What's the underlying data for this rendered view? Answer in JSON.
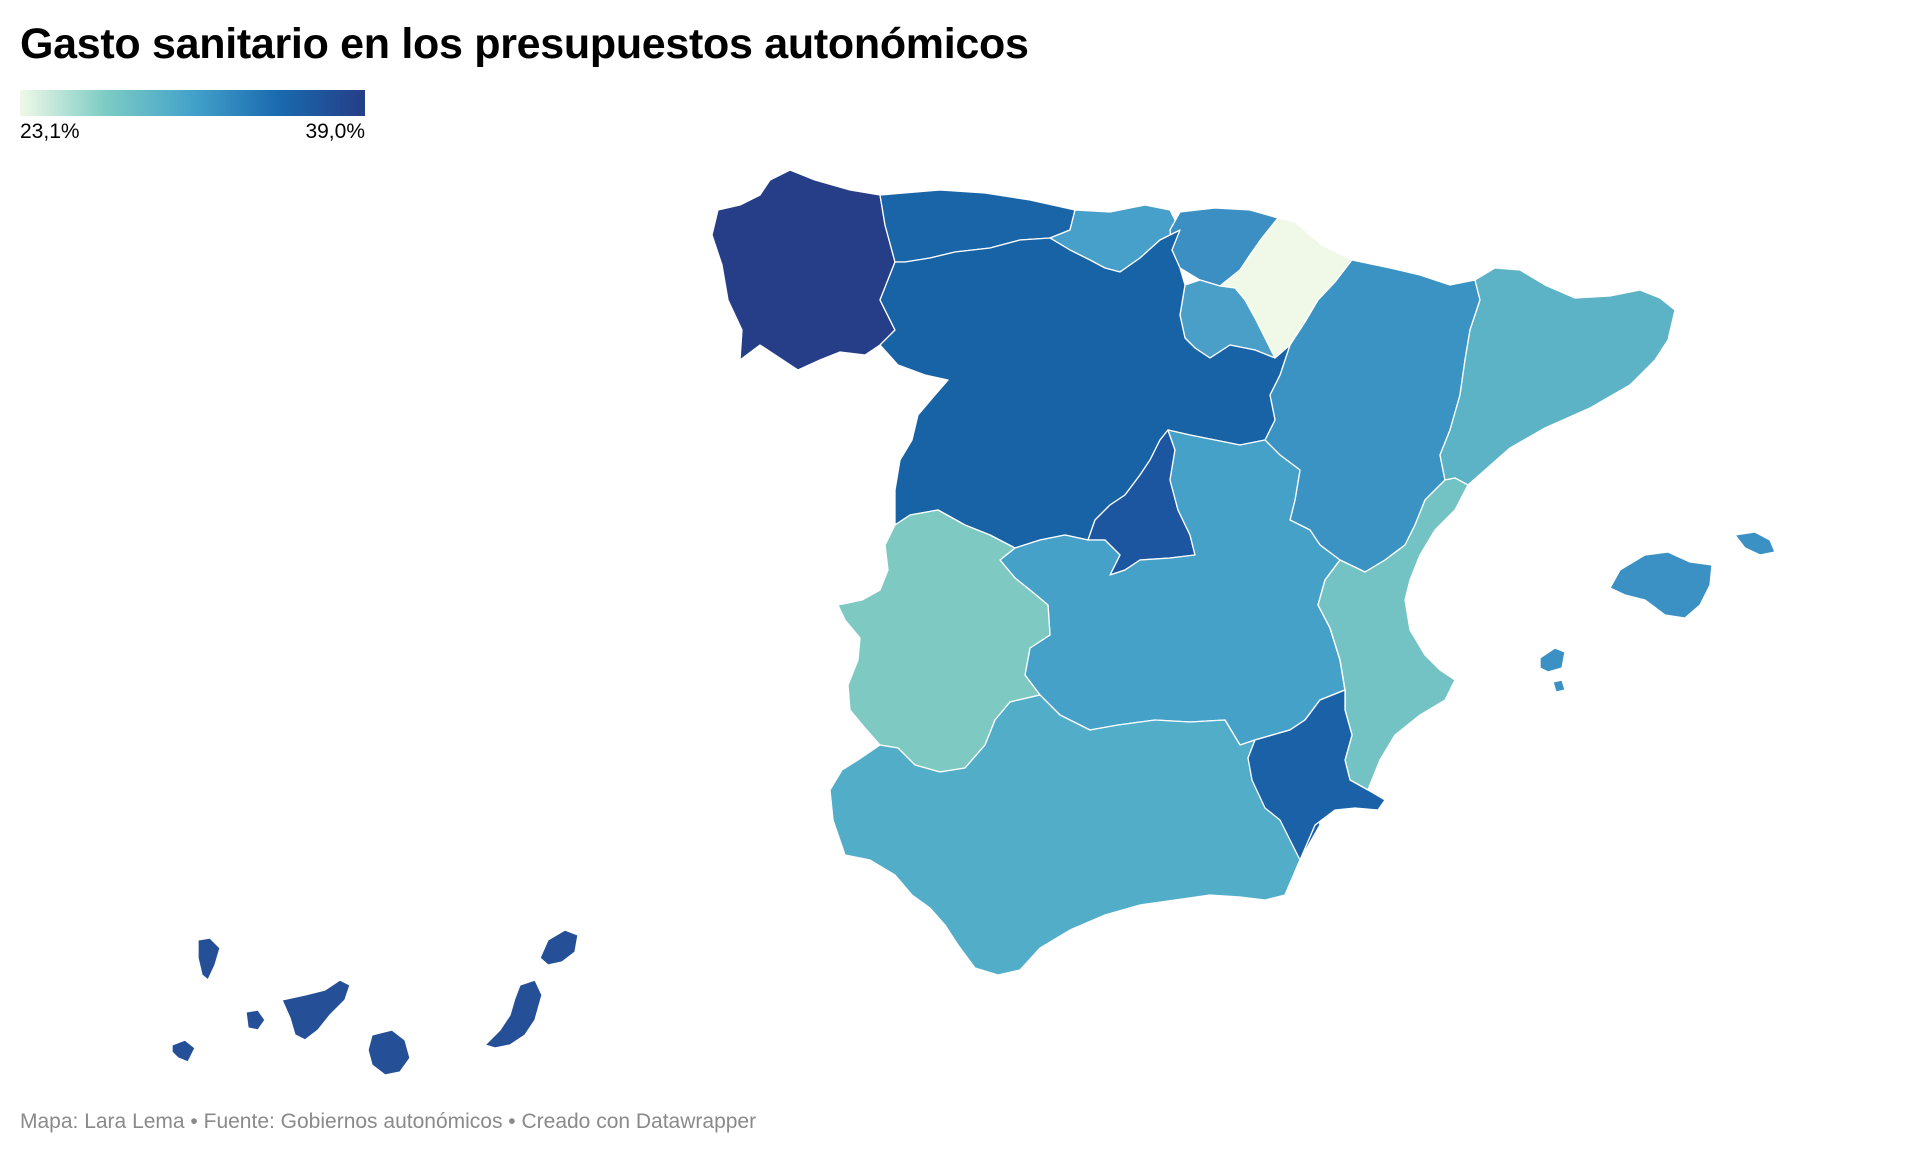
{
  "title": "Gasto sanitario en los presupuestos autonómicos",
  "legend": {
    "min_label": "23,1%",
    "max_label": "39,0%",
    "colors": [
      "#f0f9e8",
      "#7ccbc4",
      "#43a2ca",
      "#1a6aaf",
      "#253e87"
    ]
  },
  "footer": "Mapa: Lara Lema • Fuente: Gobiernos autonómicos • Creado con Datawrapper",
  "regions": [
    {
      "id": "galicia",
      "color": "#253e87"
    },
    {
      "id": "asturias",
      "color": "#1a64a8"
    },
    {
      "id": "cantabria",
      "color": "#46a0c9"
    },
    {
      "id": "pais-vasco",
      "color": "#3b8fc2"
    },
    {
      "id": "navarra",
      "color": "#f0f9e8"
    },
    {
      "id": "la-rioja",
      "color": "#4a9fc9"
    },
    {
      "id": "aragon",
      "color": "#3b93c3"
    },
    {
      "id": "cataluna",
      "color": "#5db3c6"
    },
    {
      "id": "castilla-y-leon",
      "color": "#1863a5"
    },
    {
      "id": "madrid",
      "color": "#1c55a0"
    },
    {
      "id": "castilla-la-mancha",
      "color": "#45a1c8"
    },
    {
      "id": "comunidad-valenciana",
      "color": "#74c3c4"
    },
    {
      "id": "extremadura",
      "color": "#7ecac3"
    },
    {
      "id": "andalucia",
      "color": "#52adc8"
    },
    {
      "id": "murcia",
      "color": "#1a61a8"
    },
    {
      "id": "baleares",
      "color": "#3b90c4"
    },
    {
      "id": "canarias",
      "color": "#254f96"
    }
  ]
}
